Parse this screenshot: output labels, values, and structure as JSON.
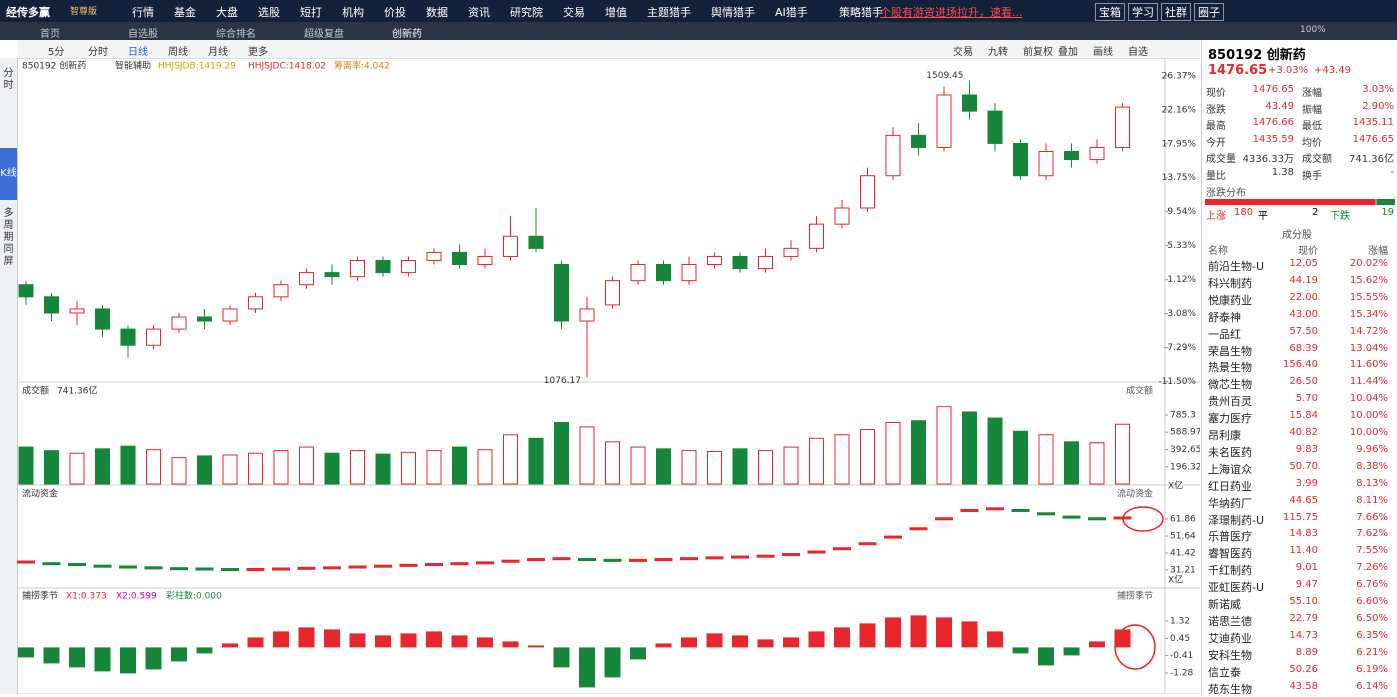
{
  "menu": {
    "logo": "经传多赢",
    "edition": "智尊版",
    "items": [
      "行情",
      "基金",
      "大盘",
      "选股",
      "短打",
      "机构",
      "价投",
      "数据",
      "资讯",
      "研究院",
      "交易",
      "增值",
      "主题猎手",
      "舆情猎手",
      "AI猎手",
      "策略猎手"
    ],
    "marquee": "个股有游资进场拉升，速看...",
    "buttons": [
      "宝箱",
      "学习",
      "社群",
      "圈子"
    ],
    "zoom": "100%"
  },
  "tabs": [
    "首页",
    "自选股",
    "综合排名",
    "超级复盘",
    "创新药"
  ],
  "toolbar": {
    "left": [
      "5分",
      "分时",
      "日线",
      "周线",
      "月线",
      "更多"
    ],
    "right": [
      "交易",
      "九转",
      "前复权",
      "叠加",
      "画线",
      "自选"
    ]
  },
  "side": [
    "分时",
    "K线",
    "多周期同屏"
  ],
  "kline": {
    "legend": [
      "850192 创新药",
      "智能辅助",
      "HHJSJDB:1419.29",
      "HHJSJDC:1418.02",
      "筹离率:4.042"
    ],
    "ylim": [
      -11.8,
      26.6
    ],
    "yticks": [
      {
        "value": 26.37,
        "label": "26.37%"
      },
      {
        "value": 22.16,
        "label": "22.16%"
      },
      {
        "value": 17.95,
        "label": "17.95%"
      },
      {
        "value": 13.75,
        "label": "13.75%"
      },
      {
        "value": 9.54,
        "label": "9.54%"
      },
      {
        "value": 5.33,
        "label": "5.33%"
      },
      {
        "value": 1.12,
        "label": "1.12%"
      },
      {
        "value": -3.08,
        "label": "-3.08%"
      },
      {
        "value": -7.29,
        "label": "-7.29%"
      },
      {
        "value": -11.5,
        "label": "-11.50%"
      }
    ],
    "high_label": "1509.45",
    "low_label": "1076.17",
    "candles": [
      [
        0.5,
        -1,
        1,
        -2
      ],
      [
        -1,
        -3,
        -0.5,
        -4
      ],
      [
        -3,
        -2.5,
        -1.5,
        -4.5
      ],
      [
        -2.5,
        -5,
        -2,
        -6
      ],
      [
        -5,
        -7,
        -4.5,
        -8.5
      ],
      [
        -7,
        -5,
        -4.5,
        -7.5
      ],
      [
        -5,
        -3.5,
        -3,
        -5.5
      ],
      [
        -3.5,
        -4,
        -2.5,
        -5
      ],
      [
        -4,
        -2.5,
        -2,
        -4.5
      ],
      [
        -2.5,
        -1,
        -0.5,
        -3
      ],
      [
        -1,
        0.5,
        1,
        -1.5
      ],
      [
        0.5,
        2,
        2.5,
        0
      ],
      [
        2,
        1.5,
        3,
        0.5
      ],
      [
        1.5,
        3.5,
        4,
        1
      ],
      [
        3.5,
        2,
        4,
        1.5
      ],
      [
        2,
        3.5,
        4,
        1.5
      ],
      [
        3.5,
        4.5,
        5,
        3
      ],
      [
        4.5,
        3,
        5.5,
        2.5
      ],
      [
        3,
        4,
        5,
        2.5
      ],
      [
        4,
        6.5,
        9,
        3.5
      ],
      [
        6.5,
        5,
        10,
        4.5
      ],
      [
        3,
        -4,
        3.5,
        -5
      ],
      [
        -4,
        -2.5,
        -1,
        -11
      ],
      [
        -2,
        1,
        1.5,
        -2.5
      ],
      [
        1,
        3,
        3.5,
        0.5
      ],
      [
        3,
        1,
        3.5,
        0.5
      ],
      [
        1,
        3,
        4,
        0.5
      ],
      [
        3,
        4,
        4.5,
        2.5
      ],
      [
        4,
        2.5,
        4.5,
        2
      ],
      [
        2.5,
        4,
        5,
        2
      ],
      [
        4,
        5,
        6,
        3.5
      ],
      [
        5,
        8,
        9,
        4.5
      ],
      [
        8,
        10,
        11,
        7.5
      ],
      [
        10,
        14,
        15,
        9.5
      ],
      [
        14,
        19,
        20,
        13.5
      ],
      [
        19,
        17.5,
        20.5,
        16.5
      ],
      [
        17.5,
        24,
        25,
        17
      ],
      [
        24,
        22,
        25.8,
        21
      ],
      [
        22,
        18,
        23,
        17
      ],
      [
        18,
        14,
        18.5,
        13.5
      ],
      [
        14,
        17,
        18,
        13.5
      ],
      [
        17,
        16,
        18,
        15
      ],
      [
        16,
        17.5,
        18.5,
        15.5
      ],
      [
        17.5,
        22.5,
        23,
        17
      ]
    ]
  },
  "volume": {
    "label": "成交额",
    "total": "741.36亿",
    "title_right": "成交额",
    "unit": "X亿",
    "ylim": [
      0,
      956
    ],
    "yticks": [
      785.3,
      588.97,
      392.65,
      196.32
    ],
    "values": [
      420,
      380,
      350,
      400,
      430,
      390,
      300,
      320,
      330,
      350,
      380,
      420,
      350,
      380,
      340,
      360,
      380,
      420,
      390,
      560,
      520,
      700,
      650,
      480,
      420,
      400,
      380,
      370,
      400,
      380,
      420,
      520,
      560,
      620,
      700,
      720,
      880,
      820,
      750,
      600,
      560,
      480,
      470,
      680
    ]
  },
  "flow": {
    "label": "流动资金",
    "title_right": "流动资金",
    "unit": "X亿",
    "ylim": [
      26.4,
      73.3
    ],
    "yticks": [
      61.86,
      51.64,
      41.42,
      31.21
    ],
    "values": [
      36,
      35,
      34.5,
      33.5,
      33,
      32.5,
      32,
      31.8,
      31.5,
      31.5,
      31.8,
      32.2,
      32.5,
      33,
      33.5,
      34,
      34.5,
      35,
      35.5,
      36.5,
      37.5,
      38,
      37.5,
      37,
      37,
      37.5,
      38,
      38.5,
      39,
      39.5,
      40.5,
      42,
      44,
      47,
      51,
      56,
      62,
      67,
      68,
      67,
      65,
      63,
      62,
      62.5
    ]
  },
  "osc": {
    "label": "捕捞季节",
    "legend": [
      "X1:0.373",
      "X2:0.599",
      "彩柱数:0.000"
    ],
    "title_right": "捕捞季节",
    "ylim": [
      -2.13,
      2.22
    ],
    "yticks": [
      1.32,
      0.45,
      -0.41,
      -1.28
    ],
    "values": [
      -0.5,
      -0.8,
      -1,
      -1.2,
      -1.3,
      -1.1,
      -0.7,
      -0.3,
      0.2,
      0.5,
      0.8,
      1,
      0.9,
      0.7,
      0.6,
      0.7,
      0.8,
      0.6,
      0.5,
      0.3,
      0.1,
      -1,
      -2,
      -1.5,
      -0.6,
      0.2,
      0.5,
      0.7,
      0.6,
      0.4,
      0.5,
      0.8,
      1,
      1.2,
      1.5,
      1.6,
      1.5,
      1.3,
      0.8,
      -0.3,
      -0.9,
      -0.4,
      0.3,
      0.9
    ]
  },
  "quote": {
    "code": "850192 创新药",
    "price": "1476.65",
    "pct": "+3.03%",
    "chg": "+43.49",
    "fields": [
      [
        "现价",
        "1476.65",
        "涨幅",
        "3.03%"
      ],
      [
        "涨跌",
        "43.49",
        "振幅",
        "2.90%"
      ],
      [
        "最高",
        "1476.66",
        "最低",
        "1435.11"
      ],
      [
        "今开",
        "1435.59",
        "均价",
        "1476.65"
      ],
      [
        "成交量",
        "4336.33万",
        "成交额",
        "741.36亿"
      ],
      [
        "量比",
        "1.38",
        "换手",
        "-"
      ]
    ],
    "breadth_title": "涨跌分布",
    "up_label": "上涨",
    "up": 180,
    "flat_label": "平",
    "flat": 2,
    "down_label": "下跌",
    "down": 19
  },
  "constituents": {
    "title": "成分股",
    "header": [
      "名称",
      "现价",
      "涨幅"
    ],
    "rows": [
      [
        "前沿生物-U",
        "12.05",
        "20.02%"
      ],
      [
        "科兴制药",
        "44.19",
        "15.62%"
      ],
      [
        "悦康药业",
        "22.00",
        "15.55%"
      ],
      [
        "舒泰神",
        "43.00",
        "15.34%"
      ],
      [
        "一品红",
        "57.50",
        "14.72%"
      ],
      [
        "荣昌生物",
        "68.39",
        "13.04%"
      ],
      [
        "热景生物",
        "156.40",
        "11.60%"
      ],
      [
        "微芯生物",
        "26.50",
        "11.44%"
      ],
      [
        "贵州百灵",
        "5.70",
        "10.04%"
      ],
      [
        "塞力医疗",
        "15.84",
        "10.00%"
      ],
      [
        "昂利康",
        "40.82",
        "10.00%"
      ],
      [
        "未名医药",
        "9.83",
        "9.96%"
      ],
      [
        "上海谊众",
        "50.70",
        "8.38%"
      ],
      [
        "红日药业",
        "3.99",
        "8.13%"
      ],
      [
        "华纳药厂",
        "44.65",
        "8.11%"
      ],
      [
        "泽璟制药-U",
        "115.75",
        "7.66%"
      ],
      [
        "乐普医疗",
        "14.83",
        "7.62%"
      ],
      [
        "睿智医药",
        "11.40",
        "7.55%"
      ],
      [
        "千红制药",
        "9.01",
        "7.26%"
      ],
      [
        "亚虹医药-U",
        "9.47",
        "6.76%"
      ],
      [
        "新诺威",
        "55.10",
        "6.60%"
      ],
      [
        "诺思兰德",
        "22.79",
        "6.50%"
      ],
      [
        "艾迪药业",
        "14.73",
        "6.35%"
      ],
      [
        "安科生物",
        "8.89",
        "6.21%"
      ],
      [
        "信立泰",
        "50.26",
        "6.19%"
      ],
      [
        "苑东生物",
        "43.58",
        "6.14%"
      ]
    ]
  }
}
